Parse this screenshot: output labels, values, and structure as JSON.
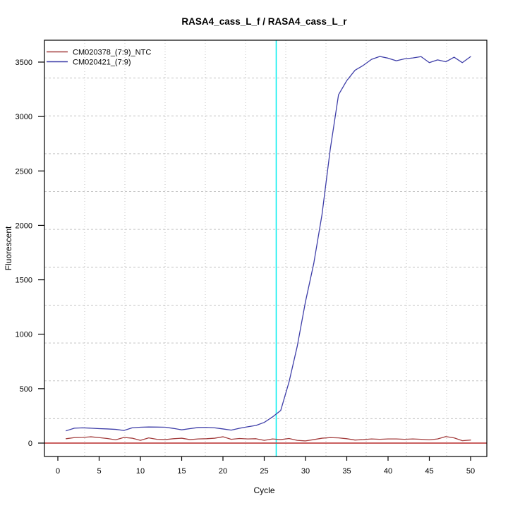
{
  "window": {
    "title": "RASA4_cass_L_f / RASA4_cass_L_r"
  },
  "chart_data": {
    "type": "line",
    "title": "RASA4_cass_L_f / RASA4_cass_L_r",
    "xlabel": "Cycle",
    "ylabel": "Fluorescent",
    "x_ticks": [
      0,
      5,
      10,
      15,
      20,
      25,
      30,
      35,
      40,
      45,
      50
    ],
    "y_ticks": [
      0,
      500,
      1000,
      1500,
      2000,
      2500,
      3000,
      3500
    ],
    "xlim": [
      -1.8,
      52
    ],
    "ylim": [
      -123,
      3700
    ],
    "grid": {
      "nx": 11,
      "ny": 11,
      "on": true,
      "color": "#c3c3c3"
    },
    "legend_position": "top-left",
    "x": [
      1,
      2,
      3,
      4,
      5,
      6,
      7,
      8,
      9,
      10,
      11,
      12,
      13,
      14,
      15,
      16,
      17,
      18,
      19,
      20,
      21,
      22,
      23,
      24,
      25,
      26,
      27,
      28,
      29,
      30,
      31,
      32,
      33,
      34,
      35,
      36,
      37,
      38,
      39,
      40,
      41,
      42,
      43,
      44,
      45,
      46,
      47,
      48,
      49,
      50
    ],
    "series": [
      {
        "name": "CM020378_(7:9)_NTC",
        "color": "#a33d3d",
        "values": [
          40,
          50,
          52,
          58,
          50,
          42,
          30,
          52,
          45,
          25,
          48,
          35,
          32,
          40,
          45,
          32,
          38,
          40,
          45,
          58,
          35,
          42,
          38,
          40,
          25,
          38,
          32,
          42,
          25,
          20,
          32,
          45,
          50,
          48,
          40,
          28,
          32,
          38,
          35,
          38,
          38,
          35,
          38,
          35,
          30,
          38,
          60,
          48,
          22,
          28
        ]
      },
      {
        "name": "CM020421_(7:9)",
        "color": "#3e3ea8",
        "values": [
          113,
          137,
          140,
          137,
          133,
          130,
          126,
          116,
          140,
          146,
          148,
          147,
          146,
          135,
          122,
          133,
          143,
          144,
          140,
          130,
          119,
          136,
          150,
          162,
          190,
          240,
          300,
          560,
          890,
          1300,
          1650,
          2100,
          2700,
          3200,
          3330,
          3425,
          3470,
          3525,
          3552,
          3536,
          3512,
          3530,
          3538,
          3550,
          3495,
          3520,
          3503,
          3545,
          3495,
          3550
        ]
      }
    ],
    "baseline_line": {
      "value": 0,
      "color": "#c24a4a"
    },
    "threshold_cycle_line": {
      "cycle": 26.45,
      "color": "#00eeee"
    },
    "axis_color": "#000000",
    "background": "#ffffff"
  }
}
